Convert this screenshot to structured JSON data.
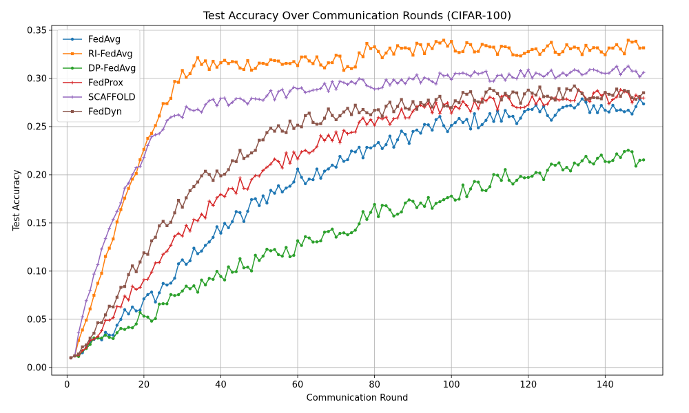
{
  "chart_data": {
    "type": "line",
    "title": "Test Accuracy Over Communication Rounds (CIFAR-100)",
    "xlabel": "Communication Round",
    "ylabel": "Test Accuracy",
    "xlim": [
      -4,
      155
    ],
    "ylim": [
      -0.008,
      0.355
    ],
    "xticks": [
      0,
      20,
      40,
      60,
      80,
      100,
      120,
      140
    ],
    "yticks": [
      0.0,
      0.05,
      0.1,
      0.15,
      0.2,
      0.25,
      0.3,
      0.35
    ],
    "ytick_labels": [
      "0.00",
      "0.05",
      "0.10",
      "0.15",
      "0.20",
      "0.25",
      "0.30",
      "0.35"
    ],
    "xtick_labels": [
      "0",
      "20",
      "40",
      "60",
      "80",
      "100",
      "120",
      "140"
    ],
    "grid": true,
    "legend_position": "top-left",
    "rounds": [
      1,
      150
    ],
    "series": [
      {
        "name": "FedAvg",
        "color": "#1f77b4",
        "marker": "circle",
        "key_points": [
          [
            1,
            0.01
          ],
          [
            3,
            0.012
          ],
          [
            5,
            0.02
          ],
          [
            7,
            0.028
          ],
          [
            10,
            0.033
          ],
          [
            12,
            0.03
          ],
          [
            14,
            0.052
          ],
          [
            16,
            0.06
          ],
          [
            18,
            0.063
          ],
          [
            20,
            0.066
          ],
          [
            22,
            0.072
          ],
          [
            24,
            0.078
          ],
          [
            26,
            0.088
          ],
          [
            28,
            0.095
          ],
          [
            30,
            0.105
          ],
          [
            32,
            0.112
          ],
          [
            34,
            0.124
          ],
          [
            36,
            0.13
          ],
          [
            38,
            0.135
          ],
          [
            40,
            0.14
          ],
          [
            42,
            0.15
          ],
          [
            44,
            0.155
          ],
          [
            46,
            0.155
          ],
          [
            48,
            0.168
          ],
          [
            50,
            0.175
          ],
          [
            52,
            0.178
          ],
          [
            55,
            0.185
          ],
          [
            58,
            0.19
          ],
          [
            60,
            0.198
          ],
          [
            63,
            0.2
          ],
          [
            65,
            0.203
          ],
          [
            68,
            0.21
          ],
          [
            70,
            0.213
          ],
          [
            73,
            0.215
          ],
          [
            76,
            0.225
          ],
          [
            80,
            0.23
          ],
          [
            84,
            0.232
          ],
          [
            88,
            0.24
          ],
          [
            92,
            0.245
          ],
          [
            96,
            0.252
          ],
          [
            100,
            0.25
          ],
          [
            105,
            0.255
          ],
          [
            110,
            0.258
          ],
          [
            115,
            0.262
          ],
          [
            120,
            0.262
          ],
          [
            125,
            0.265
          ],
          [
            130,
            0.268
          ],
          [
            135,
            0.272
          ],
          [
            140,
            0.268
          ],
          [
            145,
            0.27
          ],
          [
            150,
            0.27
          ]
        ],
        "noise": 0.009
      },
      {
        "name": "RI-FedAvg",
        "color": "#ff7f0e",
        "marker": "square",
        "key_points": [
          [
            1,
            0.01
          ],
          [
            3,
            0.028
          ],
          [
            5,
            0.048
          ],
          [
            7,
            0.075
          ],
          [
            9,
            0.1
          ],
          [
            11,
            0.125
          ],
          [
            13,
            0.15
          ],
          [
            15,
            0.18
          ],
          [
            17,
            0.2
          ],
          [
            19,
            0.212
          ],
          [
            21,
            0.235
          ],
          [
            23,
            0.255
          ],
          [
            25,
            0.268
          ],
          [
            27,
            0.285
          ],
          [
            29,
            0.298
          ],
          [
            31,
            0.305
          ],
          [
            33,
            0.312
          ],
          [
            35,
            0.318
          ],
          [
            37,
            0.312
          ],
          [
            40,
            0.316
          ],
          [
            45,
            0.314
          ],
          [
            50,
            0.316
          ],
          [
            55,
            0.317
          ],
          [
            60,
            0.316
          ],
          [
            65,
            0.317
          ],
          [
            70,
            0.318
          ],
          [
            74,
            0.312
          ],
          [
            78,
            0.33
          ],
          [
            82,
            0.322
          ],
          [
            86,
            0.33
          ],
          [
            90,
            0.33
          ],
          [
            95,
            0.334
          ],
          [
            100,
            0.333
          ],
          [
            105,
            0.331
          ],
          [
            110,
            0.33
          ],
          [
            115,
            0.328
          ],
          [
            120,
            0.33
          ],
          [
            125,
            0.332
          ],
          [
            130,
            0.331
          ],
          [
            135,
            0.33
          ],
          [
            140,
            0.33
          ],
          [
            145,
            0.332
          ],
          [
            150,
            0.336
          ]
        ],
        "noise": 0.007
      },
      {
        "name": "DP-FedAvg",
        "color": "#2ca02c",
        "marker": "circle",
        "key_points": [
          [
            1,
            0.01
          ],
          [
            3,
            0.011
          ],
          [
            5,
            0.02
          ],
          [
            7,
            0.028
          ],
          [
            10,
            0.032
          ],
          [
            12,
            0.03
          ],
          [
            15,
            0.042
          ],
          [
            18,
            0.05
          ],
          [
            21,
            0.055
          ],
          [
            24,
            0.058
          ],
          [
            27,
            0.068
          ],
          [
            30,
            0.074
          ],
          [
            33,
            0.082
          ],
          [
            36,
            0.088
          ],
          [
            40,
            0.095
          ],
          [
            43,
            0.105
          ],
          [
            47,
            0.105
          ],
          [
            50,
            0.112
          ],
          [
            54,
            0.118
          ],
          [
            58,
            0.122
          ],
          [
            62,
            0.13
          ],
          [
            66,
            0.138
          ],
          [
            70,
            0.142
          ],
          [
            74,
            0.145
          ],
          [
            78,
            0.16
          ],
          [
            82,
            0.165
          ],
          [
            86,
            0.165
          ],
          [
            90,
            0.17
          ],
          [
            94,
            0.172
          ],
          [
            98,
            0.176
          ],
          [
            102,
            0.182
          ],
          [
            106,
            0.186
          ],
          [
            110,
            0.192
          ],
          [
            114,
            0.198
          ],
          [
            118,
            0.196
          ],
          [
            122,
            0.2
          ],
          [
            126,
            0.205
          ],
          [
            130,
            0.208
          ],
          [
            134,
            0.215
          ],
          [
            138,
            0.212
          ],
          [
            142,
            0.216
          ],
          [
            146,
            0.218
          ],
          [
            150,
            0.212
          ]
        ],
        "noise": 0.008
      },
      {
        "name": "FedProx",
        "color": "#d62728",
        "marker": "plus",
        "key_points": [
          [
            1,
            0.01
          ],
          [
            3,
            0.013
          ],
          [
            5,
            0.022
          ],
          [
            8,
            0.035
          ],
          [
            11,
            0.052
          ],
          [
            14,
            0.065
          ],
          [
            17,
            0.078
          ],
          [
            20,
            0.092
          ],
          [
            23,
            0.105
          ],
          [
            26,
            0.118
          ],
          [
            29,
            0.135
          ],
          [
            32,
            0.148
          ],
          [
            35,
            0.16
          ],
          [
            38,
            0.168
          ],
          [
            41,
            0.178
          ],
          [
            44,
            0.188
          ],
          [
            47,
            0.193
          ],
          [
            50,
            0.205
          ],
          [
            53,
            0.21
          ],
          [
            56,
            0.215
          ],
          [
            59,
            0.222
          ],
          [
            62,
            0.228
          ],
          [
            65,
            0.232
          ],
          [
            68,
            0.235
          ],
          [
            71,
            0.24
          ],
          [
            74,
            0.245
          ],
          [
            78,
            0.255
          ],
          [
            82,
            0.258
          ],
          [
            86,
            0.262
          ],
          [
            90,
            0.265
          ],
          [
            95,
            0.27
          ],
          [
            100,
            0.27
          ],
          [
            105,
            0.27
          ],
          [
            110,
            0.275
          ],
          [
            115,
            0.275
          ],
          [
            120,
            0.275
          ],
          [
            125,
            0.277
          ],
          [
            130,
            0.28
          ],
          [
            135,
            0.282
          ],
          [
            140,
            0.282
          ],
          [
            145,
            0.28
          ],
          [
            150,
            0.28
          ]
        ],
        "noise": 0.008
      },
      {
        "name": "SCAFFOLD",
        "color": "#9467bd",
        "marker": "plus",
        "key_points": [
          [
            1,
            0.01
          ],
          [
            3,
            0.035
          ],
          [
            5,
            0.068
          ],
          [
            7,
            0.095
          ],
          [
            9,
            0.122
          ],
          [
            11,
            0.142
          ],
          [
            13,
            0.163
          ],
          [
            15,
            0.182
          ],
          [
            17,
            0.198
          ],
          [
            19,
            0.212
          ],
          [
            21,
            0.228
          ],
          [
            23,
            0.24
          ],
          [
            25,
            0.248
          ],
          [
            27,
            0.255
          ],
          [
            29,
            0.262
          ],
          [
            31,
            0.265
          ],
          [
            34,
            0.268
          ],
          [
            37,
            0.272
          ],
          [
            40,
            0.276
          ],
          [
            43,
            0.278
          ],
          [
            46,
            0.278
          ],
          [
            50,
            0.28
          ],
          [
            55,
            0.284
          ],
          [
            60,
            0.286
          ],
          [
            65,
            0.29
          ],
          [
            70,
            0.292
          ],
          [
            75,
            0.294
          ],
          [
            80,
            0.294
          ],
          [
            85,
            0.296
          ],
          [
            90,
            0.298
          ],
          [
            95,
            0.3
          ],
          [
            100,
            0.3
          ],
          [
            105,
            0.302
          ],
          [
            110,
            0.303
          ],
          [
            115,
            0.304
          ],
          [
            120,
            0.305
          ],
          [
            125,
            0.306
          ],
          [
            130,
            0.306
          ],
          [
            135,
            0.308
          ],
          [
            140,
            0.308
          ],
          [
            145,
            0.308
          ],
          [
            150,
            0.306
          ]
        ],
        "noise": 0.006
      },
      {
        "name": "FedDyn",
        "color": "#8c564b",
        "marker": "square",
        "key_points": [
          [
            1,
            0.01
          ],
          [
            3,
            0.015
          ],
          [
            5,
            0.025
          ],
          [
            7,
            0.038
          ],
          [
            9,
            0.05
          ],
          [
            11,
            0.062
          ],
          [
            13,
            0.072
          ],
          [
            15,
            0.088
          ],
          [
            17,
            0.1
          ],
          [
            19,
            0.11
          ],
          [
            21,
            0.125
          ],
          [
            23,
            0.135
          ],
          [
            25,
            0.148
          ],
          [
            27,
            0.158
          ],
          [
            29,
            0.168
          ],
          [
            31,
            0.175
          ],
          [
            33,
            0.185
          ],
          [
            35,
            0.195
          ],
          [
            37,
            0.2
          ],
          [
            40,
            0.205
          ],
          [
            43,
            0.215
          ],
          [
            46,
            0.225
          ],
          [
            49,
            0.232
          ],
          [
            52,
            0.24
          ],
          [
            55,
            0.248
          ],
          [
            58,
            0.252
          ],
          [
            61,
            0.256
          ],
          [
            64,
            0.258
          ],
          [
            67,
            0.262
          ],
          [
            70,
            0.262
          ],
          [
            74,
            0.264
          ],
          [
            78,
            0.268
          ],
          [
            82,
            0.268
          ],
          [
            86,
            0.27
          ],
          [
            90,
            0.272
          ],
          [
            94,
            0.275
          ],
          [
            98,
            0.276
          ],
          [
            102,
            0.278
          ],
          [
            106,
            0.28
          ],
          [
            110,
            0.282
          ],
          [
            114,
            0.282
          ],
          [
            118,
            0.282
          ],
          [
            122,
            0.284
          ],
          [
            126,
            0.285
          ],
          [
            130,
            0.285
          ],
          [
            134,
            0.286
          ],
          [
            138,
            0.285
          ],
          [
            142,
            0.285
          ],
          [
            146,
            0.285
          ],
          [
            150,
            0.285
          ]
        ],
        "noise": 0.008
      }
    ]
  }
}
